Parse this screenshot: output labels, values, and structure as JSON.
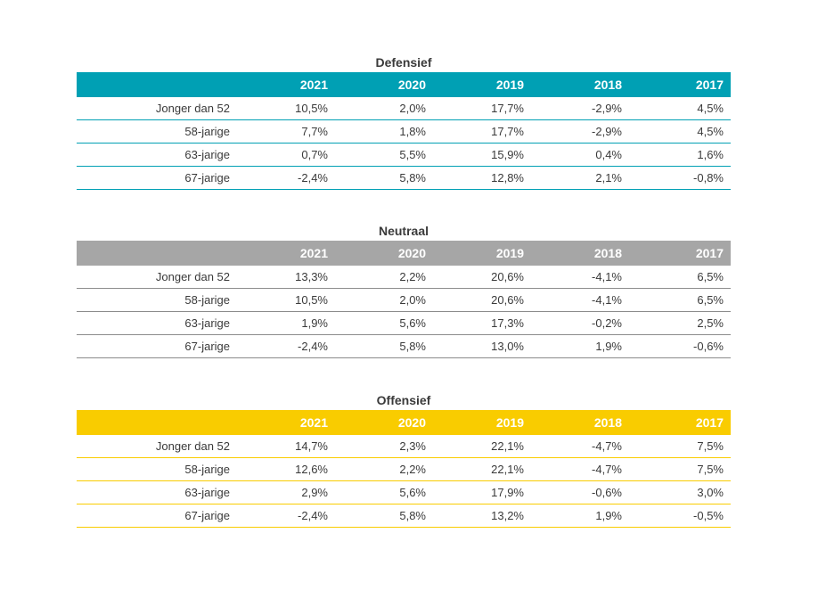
{
  "colors": {
    "defensief": "#00a0b4",
    "neutraal": "#a6a6a6",
    "offensief": "#f9cc00"
  },
  "tables": [
    {
      "title": "Defensief",
      "years": [
        "2021",
        "2020",
        "2019",
        "2018",
        "2017"
      ],
      "rows": [
        {
          "label": "Jonger dan 52",
          "values": [
            "10,5%",
            "2,0%",
            "17,7%",
            "-2,9%",
            "4,5%"
          ]
        },
        {
          "label": "58-jarige",
          "values": [
            "7,7%",
            "1,8%",
            "17,7%",
            "-2,9%",
            "4,5%"
          ]
        },
        {
          "label": "63-jarige",
          "values": [
            "0,7%",
            "5,5%",
            "15,9%",
            "0,4%",
            "1,6%"
          ]
        },
        {
          "label": "67-jarige",
          "values": [
            "-2,4%",
            "5,8%",
            "12,8%",
            "2,1%",
            "-0,8%"
          ]
        }
      ]
    },
    {
      "title": "Neutraal",
      "years": [
        "2021",
        "2020",
        "2019",
        "2018",
        "2017"
      ],
      "rows": [
        {
          "label": "Jonger dan 52",
          "values": [
            "13,3%",
            "2,2%",
            "20,6%",
            "-4,1%",
            "6,5%"
          ]
        },
        {
          "label": "58-jarige",
          "values": [
            "10,5%",
            "2,0%",
            "20,6%",
            "-4,1%",
            "6,5%"
          ]
        },
        {
          "label": "63-jarige",
          "values": [
            "1,9%",
            "5,6%",
            "17,3%",
            "-0,2%",
            "2,5%"
          ]
        },
        {
          "label": "67-jarige",
          "values": [
            "-2,4%",
            "5,8%",
            "13,0%",
            "1,9%",
            "-0,6%"
          ]
        }
      ]
    },
    {
      "title": "Offensief",
      "years": [
        "2021",
        "2020",
        "2019",
        "2018",
        "2017"
      ],
      "rows": [
        {
          "label": "Jonger dan 52",
          "values": [
            "14,7%",
            "2,3%",
            "22,1%",
            "-4,7%",
            "7,5%"
          ]
        },
        {
          "label": "58-jarige",
          "values": [
            "12,6%",
            "2,2%",
            "22,1%",
            "-4,7%",
            "7,5%"
          ]
        },
        {
          "label": "63-jarige",
          "values": [
            "2,9%",
            "5,6%",
            "17,9%",
            "-0,6%",
            "3,0%"
          ]
        },
        {
          "label": "67-jarige",
          "values": [
            "-2,4%",
            "5,8%",
            "13,2%",
            "1,9%",
            "-0,5%"
          ]
        }
      ]
    }
  ]
}
